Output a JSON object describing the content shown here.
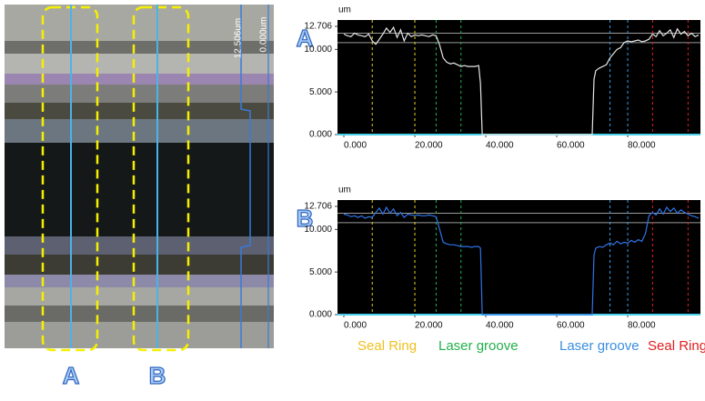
{
  "chart_data": [
    {
      "type": "line",
      "label": "A",
      "y_label": "um",
      "x": [
        0,
        1,
        2,
        3,
        4,
        5,
        6,
        7,
        8,
        9,
        10,
        11,
        12,
        13,
        14,
        15,
        16,
        17,
        18,
        19,
        20,
        21,
        22,
        23,
        24,
        25,
        26,
        27,
        28,
        29,
        30,
        31,
        32,
        33,
        34,
        35,
        36,
        37,
        38,
        38.5,
        39,
        45,
        50,
        55,
        60,
        65,
        70,
        70.5,
        71,
        72,
        73,
        74,
        75,
        76,
        77,
        78,
        79,
        80,
        81,
        82,
        83,
        84,
        85,
        86,
        87,
        88,
        89,
        90,
        91,
        92,
        93,
        94,
        95,
        96,
        97,
        98,
        99,
        100
      ],
      "series": [
        {
          "color": "#e6e6e6",
          "values": [
            11.8,
            11.6,
            11.5,
            11.9,
            11.7,
            11.6,
            11.5,
            11.8,
            11.0,
            10.6,
            11.2,
            11.8,
            12.5,
            12.0,
            12.6,
            11.4,
            12.3,
            11.0,
            11.9,
            11.5,
            11.7,
            11.6,
            11.7,
            11.6,
            11.5,
            11.7,
            11.6,
            10.5,
            9.0,
            8.5,
            8.3,
            8.4,
            8.2,
            8.0,
            8.1,
            8.0,
            8.0,
            8.0,
            8.1,
            6.0,
            0,
            0,
            0,
            0,
            0,
            0,
            0,
            6.5,
            7.5,
            7.8,
            8.0,
            8.2,
            9.0,
            9.5,
            10.0,
            10.2,
            10.8,
            11.0,
            10.9,
            11.0,
            11.1,
            10.9,
            11.0,
            11.2,
            11.8,
            11.5,
            12.2,
            11.6,
            11.9,
            12.3,
            11.4,
            12.4,
            11.8,
            12.1,
            11.6,
            11.9,
            11.5,
            11.7
          ]
        }
      ],
      "markers": [
        {
          "x": 8,
          "color": "#e8d020"
        },
        {
          "x": 20,
          "color": "#e8d020"
        },
        {
          "x": 26,
          "color": "#22b04a"
        },
        {
          "x": 33,
          "color": "#22b04a"
        },
        {
          "x": 75,
          "color": "#3a9ee8"
        },
        {
          "x": 80,
          "color": "#3a9ee8"
        },
        {
          "x": 87,
          "color": "#e02020"
        },
        {
          "x": 97,
          "color": "#e02020"
        }
      ],
      "hlines": [
        11.9,
        10.8
      ],
      "xlim": [
        -1.8,
        100.5
      ],
      "ylim": [
        0,
        13.45
      ],
      "xticks": [
        {
          "value": 0,
          "label": "0.000"
        },
        {
          "value": 20,
          "label": "20.000"
        },
        {
          "value": 40,
          "label": "40.000"
        },
        {
          "value": 60,
          "label": "60.000"
        },
        {
          "value": 80,
          "label": "80.000"
        }
      ],
      "yticks": [
        {
          "value": 0,
          "label": "0.000"
        },
        {
          "value": 5,
          "label": "5.000"
        },
        {
          "value": 10,
          "label": "10.000"
        },
        {
          "value": 12.706,
          "label": "12.706"
        }
      ]
    },
    {
      "type": "line",
      "label": "B",
      "y_label": "um",
      "x": [
        0,
        1,
        2,
        3,
        4,
        5,
        6,
        7,
        8,
        9,
        10,
        11,
        12,
        13,
        14,
        15,
        16,
        17,
        18,
        19,
        20,
        21,
        22,
        23,
        24,
        25,
        26,
        27,
        28,
        29,
        30,
        31,
        32,
        33,
        34,
        35,
        36,
        37,
        38,
        38.5,
        39,
        45,
        50,
        55,
        60,
        65,
        70,
        70.5,
        71,
        72,
        73,
        74,
        75,
        76,
        77,
        78,
        79,
        80,
        81,
        82,
        83,
        84,
        85,
        86,
        87,
        88,
        89,
        90,
        91,
        92,
        93,
        94,
        95,
        96,
        97,
        98,
        99,
        100
      ],
      "series": [
        {
          "color": "#2f74e8",
          "values": [
            11.8,
            11.7,
            11.5,
            11.6,
            11.4,
            11.6,
            11.3,
            11.5,
            11.4,
            12.0,
            12.5,
            11.8,
            12.6,
            11.9,
            12.4,
            11.6,
            12.0,
            11.4,
            11.8,
            11.7,
            11.6,
            11.7,
            11.6,
            11.6,
            11.7,
            11.6,
            11.5,
            10.0,
            8.5,
            8.3,
            8.2,
            8.2,
            8.1,
            8.0,
            8.0,
            8.0,
            7.9,
            8.0,
            8.0,
            7.8,
            0,
            0,
            0,
            0,
            0,
            0,
            0,
            7.0,
            7.8,
            8.0,
            7.9,
            8.2,
            8.4,
            8.2,
            8.6,
            8.3,
            8.5,
            8.4,
            8.7,
            8.5,
            8.8,
            8.6,
            9.5,
            11.6,
            12.0,
            11.7,
            12.4,
            11.8,
            12.6,
            12.1,
            12.5,
            11.9,
            12.3,
            12.0,
            11.8,
            11.6,
            11.5,
            11.3
          ]
        }
      ],
      "markers": [
        {
          "x": 8,
          "color": "#e8d020"
        },
        {
          "x": 20,
          "color": "#e8d020"
        },
        {
          "x": 26,
          "color": "#22b04a"
        },
        {
          "x": 33,
          "color": "#22b04a"
        },
        {
          "x": 75,
          "color": "#3a9ee8"
        },
        {
          "x": 80,
          "color": "#3a9ee8"
        },
        {
          "x": 87,
          "color": "#e02020"
        },
        {
          "x": 97,
          "color": "#e02020"
        }
      ],
      "hlines": [
        11.9,
        10.8
      ],
      "xlim": [
        -1.8,
        100.5
      ],
      "ylim": [
        0,
        13.45
      ],
      "xticks": [
        {
          "value": 0,
          "label": "0.000"
        },
        {
          "value": 20,
          "label": "20.000"
        },
        {
          "value": 40,
          "label": "40.000"
        },
        {
          "value": 60,
          "label": "60.000"
        },
        {
          "value": 80,
          "label": "80.000"
        }
      ],
      "yticks": [
        {
          "value": 0,
          "label": "0.000"
        },
        {
          "value": 5,
          "label": "5.000"
        },
        {
          "value": 10,
          "label": "10.000"
        },
        {
          "value": 12.706,
          "label": "12.706"
        }
      ]
    }
  ],
  "legend": [
    {
      "text": "Seal Ring",
      "color": "#f0c020"
    },
    {
      "text": "Laser groove",
      "color": "#22b04a"
    },
    {
      "text": "Laser groove",
      "color": "#3a8ee0"
    },
    {
      "text": "Seal Ring",
      "color": "#e02020"
    }
  ],
  "image": {
    "scale_top": "12.506um",
    "scale_bottom": "0.000um",
    "labels": [
      "A",
      "B"
    ]
  }
}
